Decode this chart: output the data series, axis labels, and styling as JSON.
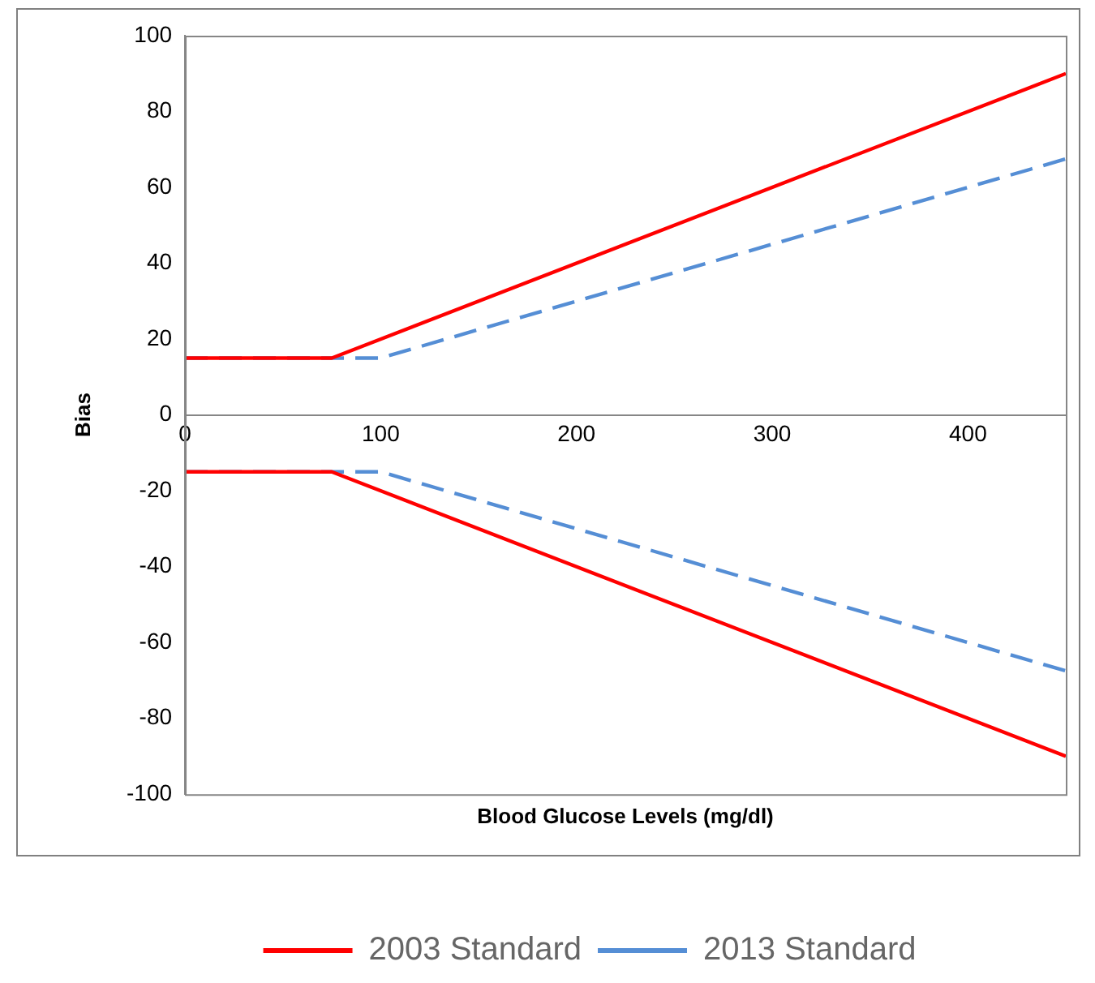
{
  "chart_data": {
    "type": "line",
    "xlabel": "Blood Glucose Levels (mg/dl)",
    "ylabel": "Bias",
    "xlim": [
      0,
      450
    ],
    "xticks": [
      0,
      100,
      200,
      300,
      400
    ],
    "ylim": [
      -100,
      100
    ],
    "yticks": [
      -100,
      -80,
      -60,
      -40,
      -20,
      0,
      20,
      40,
      60,
      80,
      100
    ],
    "grid": false,
    "legend": "bottom",
    "marker": "none",
    "series": [
      {
        "name": "2003 Standard",
        "color": "#ff0000",
        "line_style": "solid",
        "x": [
          0,
          75,
          450
        ],
        "values": [
          15,
          15,
          90
        ]
      },
      {
        "color": "#ff0000",
        "line_style": "solid",
        "x": [
          0,
          75,
          450
        ],
        "values": [
          -15,
          -15,
          -90
        ]
      },
      {
        "name": "2013 Standard",
        "color": "#558ed5",
        "line_style": "dashed",
        "x": [
          0,
          100,
          450
        ],
        "values": [
          15,
          15,
          67.5
        ]
      },
      {
        "color": "#558ed5",
        "line_style": "dashed",
        "x": [
          0,
          100,
          450
        ],
        "values": [
          -15,
          -15,
          -67.5
        ]
      }
    ]
  }
}
